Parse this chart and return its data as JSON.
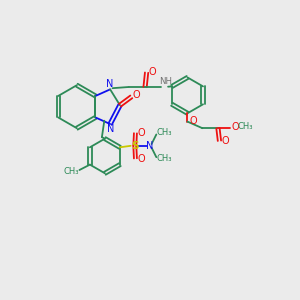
{
  "bg_color": "#ebebeb",
  "bond_color": "#2d8a57",
  "N_color": "#1010ee",
  "O_color": "#ee1010",
  "S_color": "#c8c800",
  "H_color": "#707070",
  "figsize": [
    3.0,
    3.0
  ],
  "dpi": 100,
  "xlim": [
    0,
    10
  ],
  "ylim": [
    0,
    10
  ]
}
